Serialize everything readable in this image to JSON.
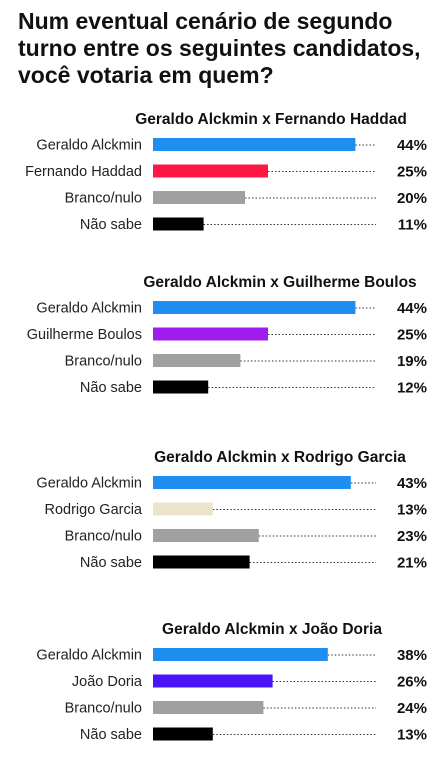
{
  "title": "Num eventual cenário de segundo turno entre os seguintes candidatos, você votaria em quem?",
  "colors": {
    "alckmin": "#1f8ef1",
    "haddad": "#ff1744",
    "boulos": "#a31cef",
    "garcia": "#ece3cb",
    "doria": "#4b14f5",
    "branco": "#a0a0a0",
    "naosabe": "#000000"
  },
  "chart_data": [
    {
      "type": "bar",
      "title": "Geraldo Alckmin x Fernando Haddad",
      "categories": [
        "Geraldo Alckmin",
        "Fernando Haddad",
        "Branco/nulo",
        "Não sabe"
      ],
      "values": [
        44,
        25,
        20,
        11
      ],
      "labels": [
        "44%",
        "25%",
        "20%",
        "11%"
      ],
      "colors": [
        "#1f8ef1",
        "#ff1744",
        "#a0a0a0",
        "#000000"
      ]
    },
    {
      "type": "bar",
      "title": "Geraldo Alckmin x Guilherme Boulos",
      "categories": [
        "Geraldo Alckmin",
        "Guilherme Boulos",
        "Branco/nulo",
        "Não sabe"
      ],
      "values": [
        44,
        25,
        19,
        12
      ],
      "labels": [
        "44%",
        "25%",
        "19%",
        "12%"
      ],
      "colors": [
        "#1f8ef1",
        "#a31cef",
        "#a0a0a0",
        "#000000"
      ]
    },
    {
      "type": "bar",
      "title": "Geraldo Alckmin x Rodrigo Garcia",
      "categories": [
        "Geraldo Alckmin",
        "Rodrigo Garcia",
        "Branco/nulo",
        "Não sabe"
      ],
      "values": [
        43,
        13,
        23,
        21
      ],
      "labels": [
        "43%",
        "13%",
        "23%",
        "21%"
      ],
      "colors": [
        "#1f8ef1",
        "#ece3cb",
        "#a0a0a0",
        "#000000"
      ]
    },
    {
      "type": "bar",
      "title": "Geraldo Alckmin x João Doria",
      "categories": [
        "Geraldo Alckmin",
        "João Doria",
        "Branco/nulo",
        "Não sabe"
      ],
      "values": [
        38,
        26,
        24,
        13
      ],
      "labels": [
        "38%",
        "26%",
        "24%",
        "13%"
      ],
      "colors": [
        "#1f8ef1",
        "#4b14f5",
        "#a0a0a0",
        "#000000"
      ]
    }
  ]
}
